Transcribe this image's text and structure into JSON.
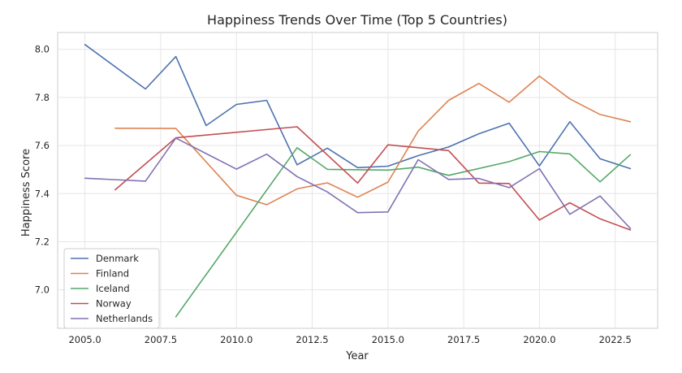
{
  "chart_data": {
    "type": "line",
    "title": "Happiness Trends Over Time (Top 5 Countries)",
    "xlabel": "Year",
    "ylabel": "Happiness Score",
    "xlim": [
      2004.1,
      2023.9
    ],
    "ylim": [
      6.84,
      8.07
    ],
    "x_ticks": [
      2005.0,
      2007.5,
      2010.0,
      2012.5,
      2015.0,
      2017.5,
      2020.0,
      2022.5
    ],
    "x_tick_labels": [
      "2005.0",
      "2007.5",
      "2010.0",
      "2012.5",
      "2015.0",
      "2017.5",
      "2020.0",
      "2022.5"
    ],
    "y_ticks": [
      7.0,
      7.2,
      7.4,
      7.6,
      7.8,
      8.0
    ],
    "y_tick_labels": [
      "7.0",
      "7.2",
      "7.4",
      "7.6",
      "7.8",
      "8.0"
    ],
    "grid": true,
    "legend_position": "lower-left",
    "series": [
      {
        "name": "Denmark",
        "color": "#4c72b0",
        "x": [
          2005,
          2007,
          2008,
          2009,
          2010,
          2011,
          2012,
          2013,
          2014,
          2015,
          2016,
          2017,
          2018,
          2019,
          2020,
          2021,
          2022,
          2023
        ],
        "values": [
          8.02,
          7.835,
          7.97,
          7.683,
          7.771,
          7.788,
          7.52,
          7.589,
          7.508,
          7.514,
          7.558,
          7.594,
          7.649,
          7.693,
          7.515,
          7.699,
          7.545,
          7.504
        ]
      },
      {
        "name": "Finland",
        "color": "#dd8452",
        "x": [
          2006,
          2008,
          2010,
          2011,
          2012,
          2013,
          2014,
          2015,
          2016,
          2017,
          2018,
          2019,
          2020,
          2021,
          2022,
          2023
        ],
        "values": [
          7.672,
          7.671,
          7.393,
          7.354,
          7.42,
          7.445,
          7.385,
          7.448,
          7.66,
          7.788,
          7.858,
          7.78,
          7.889,
          7.794,
          7.729,
          7.699
        ]
      },
      {
        "name": "Iceland",
        "color": "#55a868",
        "x": [
          2008,
          2012,
          2013,
          2015,
          2016,
          2017,
          2019,
          2020,
          2021,
          2022,
          2023
        ],
        "values": [
          6.888,
          7.591,
          7.501,
          7.498,
          7.51,
          7.476,
          7.533,
          7.575,
          7.565,
          7.449,
          7.562
        ]
      },
      {
        "name": "Norway",
        "color": "#c44e52",
        "x": [
          2006,
          2008,
          2012,
          2014,
          2015,
          2017,
          2018,
          2019,
          2020,
          2021,
          2022,
          2023
        ],
        "values": [
          7.416,
          7.632,
          7.678,
          7.444,
          7.603,
          7.579,
          7.444,
          7.442,
          7.29,
          7.362,
          7.295,
          7.249
        ]
      },
      {
        "name": "Netherlands",
        "color": "#8172b3",
        "x": [
          2005,
          2007,
          2008,
          2010,
          2011,
          2012,
          2013,
          2014,
          2015,
          2016,
          2017,
          2018,
          2019,
          2020,
          2021,
          2022,
          2023
        ],
        "values": [
          7.464,
          7.452,
          7.631,
          7.502,
          7.564,
          7.471,
          7.407,
          7.321,
          7.324,
          7.541,
          7.459,
          7.463,
          7.425,
          7.504,
          7.314,
          7.39,
          7.255
        ]
      }
    ]
  }
}
